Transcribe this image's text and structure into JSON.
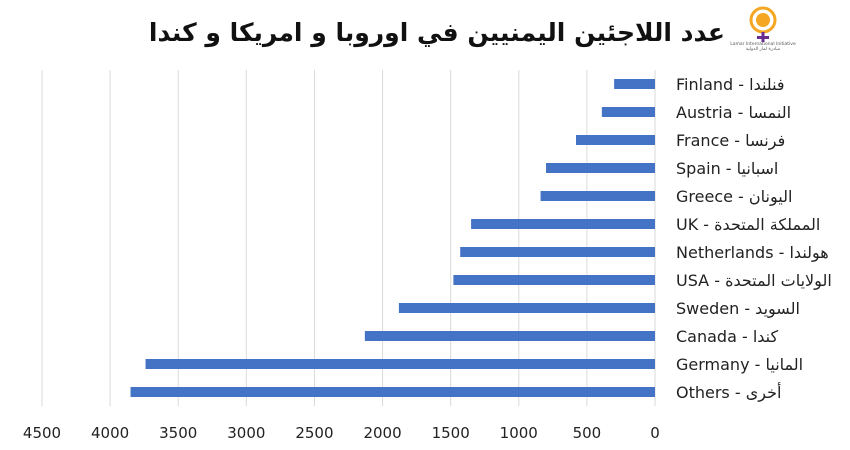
{
  "header": {
    "title": "عدد اللاجئين اليمنيين في اوروبا و امريكا و كندا",
    "logo_caption": "Lamar International Initiative",
    "logo_caption_ar": "مبادرة لمار الدولية"
  },
  "colors": {
    "bar": "#4472C4",
    "grid": "#D9D9D9",
    "logo_orange": "#F5A623",
    "logo_purple": "#6A2C91"
  },
  "chart_data": {
    "type": "bar",
    "orientation": "horizontal",
    "x_reversed": true,
    "title": "عدد اللاجئين اليمنيين في اوروبا و امريكا و كندا",
    "xlabel": "",
    "ylabel": "",
    "xlim": [
      0,
      4500
    ],
    "ticks": [
      0,
      500,
      1000,
      1500,
      2000,
      2500,
      3000,
      3500,
      4000,
      4500
    ],
    "tick_labels": [
      "0",
      "500",
      "1000",
      "1500",
      "2000",
      "2500",
      "3000",
      "3500",
      "4000",
      "4500"
    ],
    "grid": true,
    "legend": "none",
    "categories": [
      "Finland - فنلندا",
      "Austria - النمسا",
      "France - فرنسا",
      "Spain - اسبانيا",
      "Greece - اليونان",
      "UK - المملكة المتحدة",
      "Netherlands - هولندا",
      "USA - الولايات المتحدة",
      "Sweden - السويد",
      "Canada - كندا",
      "Germany - المانيا",
      "Others - أخرى"
    ],
    "values": [
      300,
      390,
      580,
      800,
      840,
      1350,
      1430,
      1480,
      1880,
      2130,
      3740,
      3850
    ]
  }
}
